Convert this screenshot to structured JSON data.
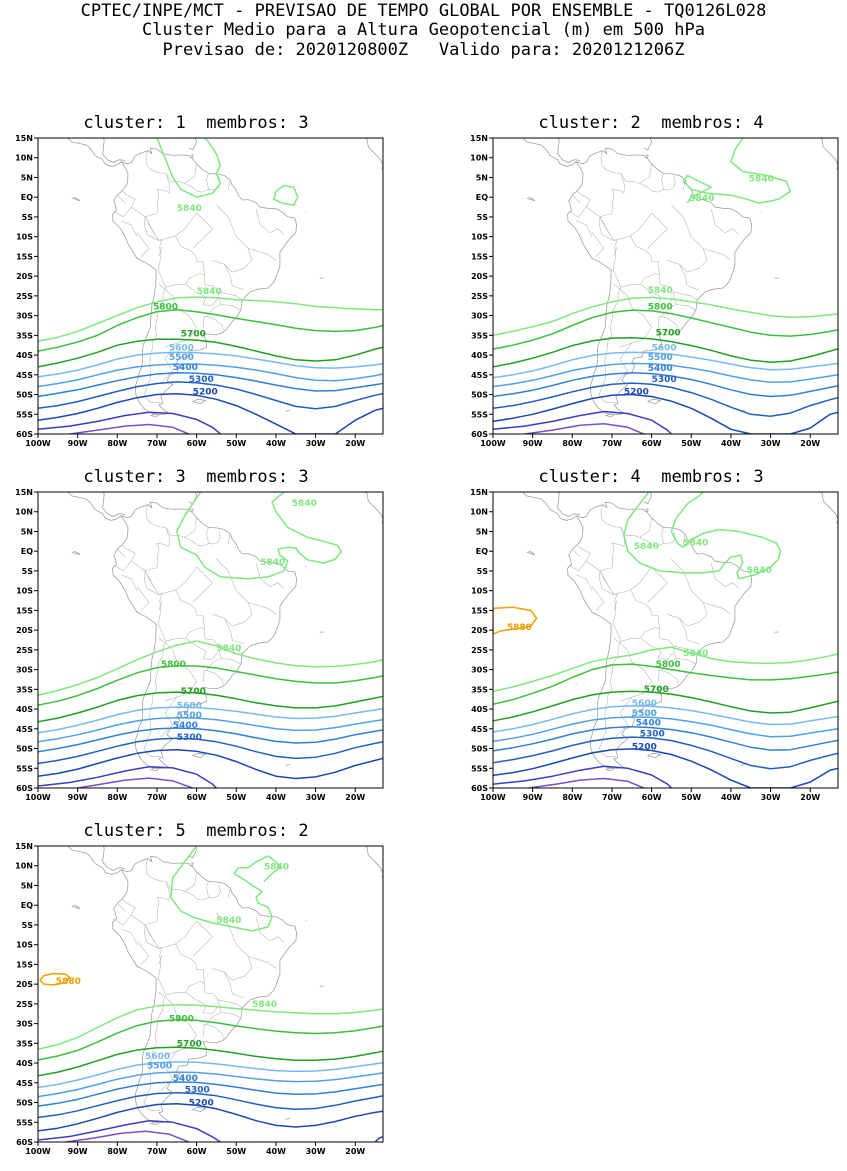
{
  "header": {
    "line1": "CPTEC/INPE/MCT - PREVISAO DE TEMPO GLOBAL POR ENSEMBLE - TQ0126L028",
    "line2": "Cluster Medio para a Altura Geopotencial (m) em 500 hPa",
    "line3": "Previsao de: 2020120800Z   Valido para: 2020121206Z"
  },
  "map_axes": {
    "lat_labels": [
      "15N",
      "10N",
      "5N",
      "EQ",
      "5S",
      "10S",
      "15S",
      "20S",
      "25S",
      "30S",
      "35S",
      "40S",
      "45S",
      "50S",
      "55S",
      "60S"
    ],
    "lon_labels": [
      "100W",
      "90W",
      "80W",
      "70W",
      "60W",
      "50W",
      "40W",
      "30W",
      "20W"
    ]
  },
  "contour_colors": {
    "5880": "#f0a000",
    "5840": "#7ee87e",
    "5800": "#3cc03c",
    "5700": "#20a020",
    "5600": "#78b8f0",
    "5500": "#50a0e8",
    "5400": "#3080d8",
    "5300": "#2060c0",
    "5200": "#1848b0",
    "5100": "#3c3cc0",
    "5000": "#7850c8"
  },
  "panels": [
    {
      "title": "cluster: 1  membros: 3",
      "labels": {
        "l5840a": "5840",
        "l5840b": "5840",
        "l5800": "5800",
        "l5700": "5700",
        "l5600": "5600",
        "l5500": "5500",
        "l5400": "5400",
        "l5300": "5300",
        "l5200": "5200"
      }
    },
    {
      "title": "cluster: 2  membros: 4",
      "labels": {
        "l5840a": "5840",
        "l5840b": "5840",
        "l5840c": "5840",
        "l5800": "5800",
        "l5700": "5700",
        "l5600": "5600",
        "l5500": "5500",
        "l5400": "5400",
        "l5300": "5300",
        "l5200": "5200"
      }
    },
    {
      "title": "cluster: 3  membros: 3",
      "labels": {
        "l5840a": "5840",
        "l5840b": "5840",
        "l5840c": "5840",
        "l5800": "5800",
        "l5700": "5700",
        "l5600": "5600",
        "l5500": "5500",
        "l5400": "5400",
        "l5300": "5300"
      }
    },
    {
      "title": "cluster: 4  membros: 3",
      "labels": {
        "l5880": "5880",
        "l5840a": "5840",
        "l5840b": "5840",
        "l5840c": "5840",
        "l5840d": "5840",
        "l5800": "5800",
        "l5700": "5700",
        "l5600": "5600",
        "l5500": "5500",
        "l5400": "5400",
        "l5300": "5300",
        "l5200": "5200"
      }
    },
    {
      "title": "cluster: 5  membros: 2",
      "labels": {
        "l5880": "5880",
        "l5840a": "5840",
        "l5840b": "5840",
        "l5840c": "5840",
        "l5800": "5800",
        "l5700": "5700",
        "l5600": "5600",
        "l5500": "5500",
        "l5400": "5400",
        "l5300": "5300",
        "l5200": "5200"
      }
    }
  ]
}
